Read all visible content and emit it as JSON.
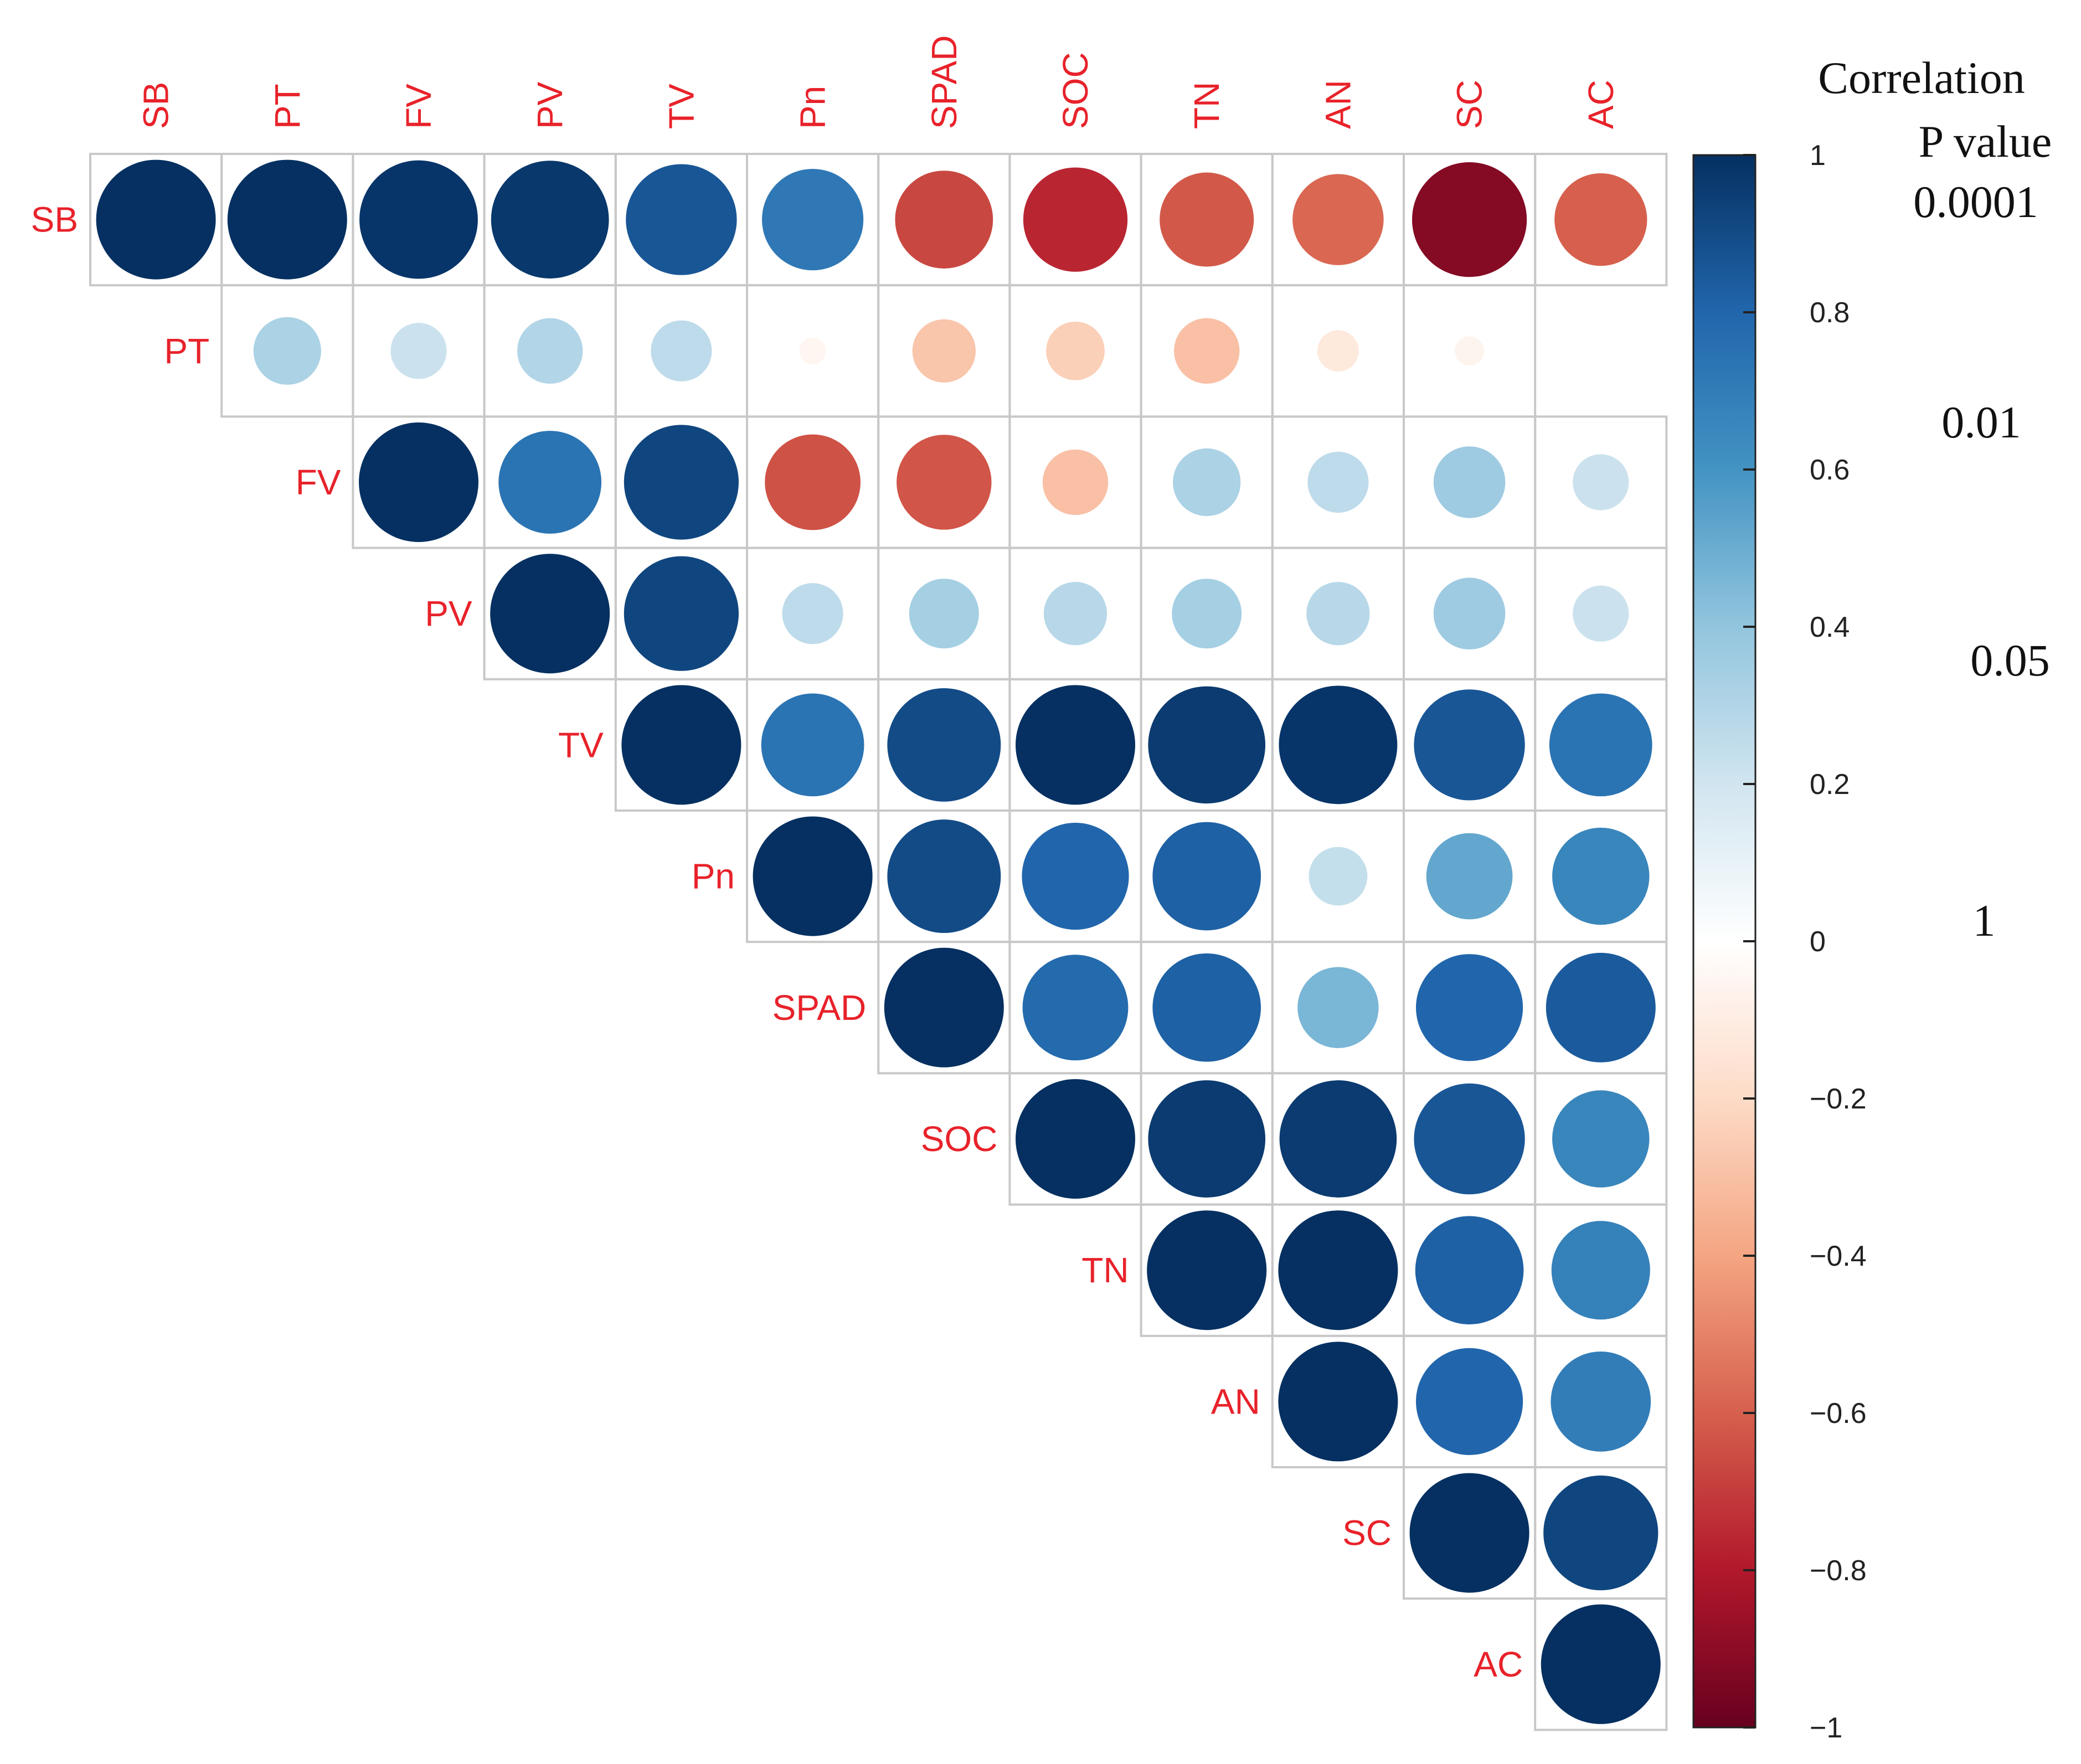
{
  "chart_data": {
    "type": "heatmap",
    "subtype": "correlation-circle-upper-triangle",
    "variables": [
      "SB",
      "PT",
      "FV",
      "PV",
      "TV",
      "Pn",
      "SPAD",
      "SOC",
      "TN",
      "AN",
      "SC",
      "AC"
    ],
    "rows": [
      [
        1.0,
        1.0,
        0.98,
        0.97,
        0.86,
        0.72,
        -0.67,
        -0.76,
        -0.62,
        -0.58,
        -0.92,
        -0.6
      ],
      [
        0.32,
        0.22,
        0.3,
        0.26,
        -0.05,
        -0.28,
        -0.24,
        -0.3,
        -0.12,
        -0.06
      ],
      [
        1.0,
        0.74,
        0.92,
        -0.64,
        -0.63,
        -0.3,
        0.32,
        0.26,
        0.36,
        0.22
      ],
      [
        1.0,
        0.92,
        0.26,
        0.34,
        0.28,
        0.34,
        0.28,
        0.36,
        0.22
      ],
      [
        1.0,
        0.74,
        0.9,
        1.0,
        0.96,
        0.98,
        0.86,
        0.74
      ],
      [
        1.0,
        0.9,
        0.8,
        0.82,
        0.24,
        0.52,
        0.66
      ],
      [
        1.0,
        0.78,
        0.82,
        0.46,
        0.8,
        0.84
      ],
      [
        1.0,
        0.96,
        0.96,
        0.86,
        0.66
      ],
      [
        1.0,
        1.0,
        0.82,
        0.68
      ],
      [
        1.0,
        0.8,
        0.7
      ],
      [
        1.0,
        0.92
      ],
      [
        1.0
      ]
    ],
    "value_range": [
      -1,
      1
    ],
    "colorbar": {
      "ticks": [
        "1",
        "0.8",
        "0.6",
        "0.4",
        "0.2",
        "0",
        "−0.2",
        "−0.4",
        "−0.6",
        "−0.8",
        "−1"
      ],
      "tick_values": [
        1,
        0.8,
        0.6,
        0.4,
        0.2,
        0,
        -0.2,
        -0.4,
        -0.6,
        -0.8,
        -1
      ]
    },
    "legend": {
      "title": "Correlation",
      "p_title": "P value",
      "p_labels": [
        "0.0001",
        "0.01",
        "0.05",
        "1"
      ]
    }
  },
  "colors": {
    "label": "#e8222a",
    "grid": "#c8c8c8",
    "text": "#111111"
  }
}
